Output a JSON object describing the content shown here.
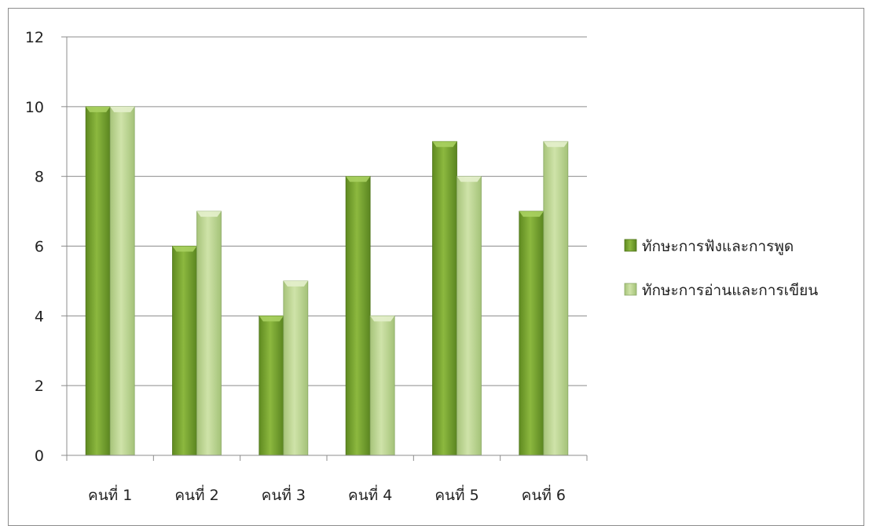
{
  "chart_data": {
    "type": "bar",
    "categories": [
      "คนที่ 1",
      "คนที่ 2",
      "คนที่ 3",
      "คนที่ 4",
      "คนที่ 5",
      "คนที่ 6"
    ],
    "series": [
      {
        "name": "ทักษะการฟังและการพูด",
        "values": [
          10,
          6,
          4,
          8,
          9,
          7
        ],
        "color": "#6e9a2a"
      },
      {
        "name": "ทักษะการอ่านและการเขียน",
        "values": [
          10,
          7,
          5,
          4,
          8,
          9
        ],
        "color": "#b5d08a"
      }
    ],
    "yticks": [
      "0",
      "2",
      "4",
      "6",
      "8",
      "10",
      "12"
    ],
    "ylim": [
      0,
      12
    ],
    "grid": true,
    "legend_position": "right"
  }
}
